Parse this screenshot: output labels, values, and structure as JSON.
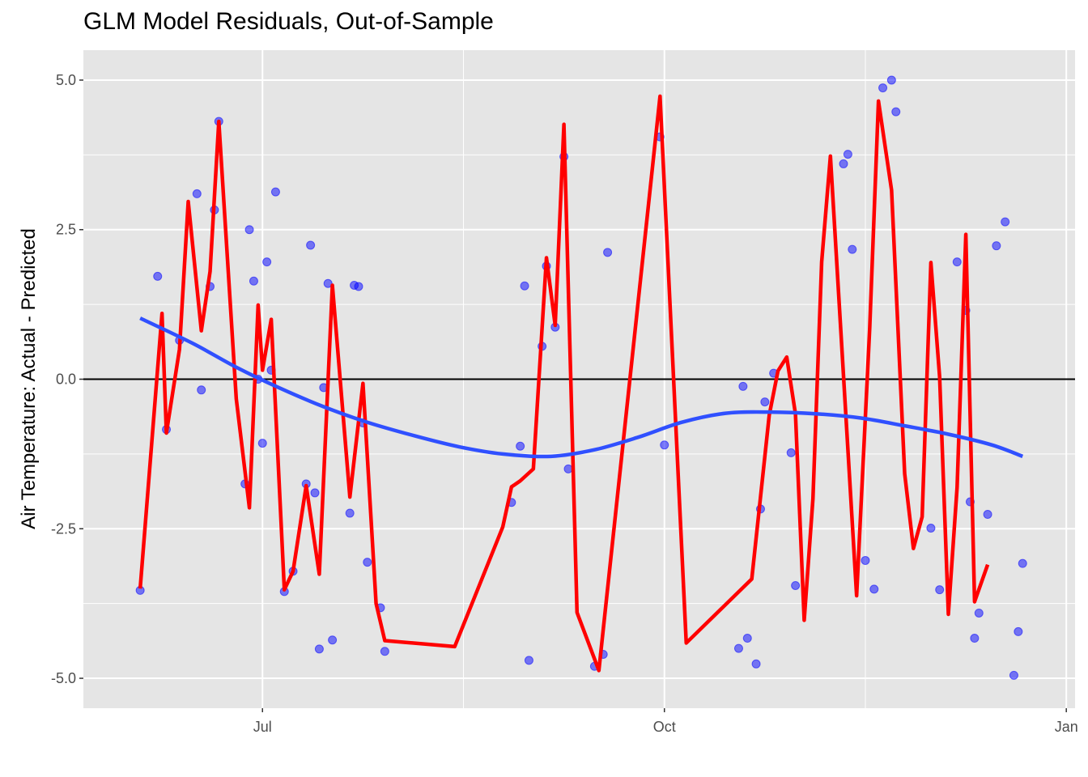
{
  "chart_data": {
    "type": "line",
    "title": "GLM Model Residuals, Out-of-Sample",
    "xlabel": "",
    "ylabel": "Air Temperature: Actual - Predicted",
    "x_ticks": [
      {
        "label": "Jul",
        "date": "2016-07-01"
      },
      {
        "label": "Oct",
        "date": "2016-10-01"
      },
      {
        "label": "Jan",
        "date": "2017-01-01"
      }
    ],
    "y_ticks": [
      5.0,
      2.5,
      0.0,
      -2.5,
      -5.0
    ],
    "y_tick_labels": [
      "5.0",
      "2.5",
      "0.0",
      "-2.5",
      "-5.0"
    ],
    "xlim": [
      "2016-05-21",
      "2017-01-03"
    ],
    "ylim": [
      -5.5,
      5.5
    ],
    "grid": true,
    "hline": 0,
    "colors": {
      "panel": "#e5e5e5",
      "grid": "#ffffff",
      "points": "#0000ff",
      "line": "#ff0000",
      "smooth": "#3050ff",
      "hline": "#000000"
    },
    "series": [
      {
        "type": "scatter",
        "points": [
          [
            "2016-06-03",
            -3.53
          ],
          [
            "2016-06-07",
            1.72
          ],
          [
            "2016-06-09",
            -0.84
          ],
          [
            "2016-06-12",
            0.65
          ],
          [
            "2016-06-16",
            3.1
          ],
          [
            "2016-06-17",
            -0.18
          ],
          [
            "2016-06-19",
            1.55
          ],
          [
            "2016-06-20",
            2.83
          ],
          [
            "2016-06-21",
            4.31
          ],
          [
            "2016-06-27",
            -1.75
          ],
          [
            "2016-06-28",
            2.5
          ],
          [
            "2016-06-29",
            1.64
          ],
          [
            "2016-06-30",
            0.0
          ],
          [
            "2016-07-01",
            -1.07
          ],
          [
            "2016-07-02",
            1.96
          ],
          [
            "2016-07-03",
            0.15
          ],
          [
            "2016-07-04",
            3.13
          ],
          [
            "2016-07-06",
            -3.55
          ],
          [
            "2016-07-08",
            -3.21
          ],
          [
            "2016-07-11",
            -1.75
          ],
          [
            "2016-07-12",
            2.24
          ],
          [
            "2016-07-13",
            -1.9
          ],
          [
            "2016-07-14",
            -4.51
          ],
          [
            "2016-07-15",
            -0.14
          ],
          [
            "2016-07-16",
            1.6
          ],
          [
            "2016-07-17",
            -4.36
          ],
          [
            "2016-07-21",
            -2.24
          ],
          [
            "2016-07-22",
            1.57
          ],
          [
            "2016-07-23",
            1.55
          ],
          [
            "2016-07-24",
            -0.73
          ],
          [
            "2016-07-25",
            -3.06
          ],
          [
            "2016-07-28",
            -3.82
          ],
          [
            "2016-07-29",
            -4.55
          ],
          [
            "2016-08-27",
            -2.06
          ],
          [
            "2016-08-29",
            -1.12
          ],
          [
            "2016-08-30",
            1.56
          ],
          [
            "2016-08-31",
            -4.7
          ],
          [
            "2016-09-03",
            0.55
          ],
          [
            "2016-09-04",
            1.89
          ],
          [
            "2016-09-06",
            0.87
          ],
          [
            "2016-09-08",
            3.72
          ],
          [
            "2016-09-09",
            -1.5
          ],
          [
            "2016-09-15",
            -4.8
          ],
          [
            "2016-09-17",
            -4.6
          ],
          [
            "2016-09-18",
            2.12
          ],
          [
            "2016-09-30",
            4.05
          ],
          [
            "2016-10-01",
            -1.1
          ],
          [
            "2016-10-18",
            -4.5
          ],
          [
            "2016-10-19",
            -0.12
          ],
          [
            "2016-10-20",
            -4.33
          ],
          [
            "2016-10-22",
            -4.76
          ],
          [
            "2016-10-23",
            -2.17
          ],
          [
            "2016-10-24",
            -0.38
          ],
          [
            "2016-10-26",
            0.1
          ],
          [
            "2016-10-30",
            -1.23
          ],
          [
            "2016-10-31",
            -3.45
          ],
          [
            "2016-11-11",
            3.6
          ],
          [
            "2016-11-12",
            3.76
          ],
          [
            "2016-11-13",
            2.17
          ],
          [
            "2016-11-16",
            -3.03
          ],
          [
            "2016-11-18",
            -3.51
          ],
          [
            "2016-11-20",
            4.87
          ],
          [
            "2016-11-22",
            5.0
          ],
          [
            "2016-11-23",
            4.47
          ],
          [
            "2016-12-01",
            -2.49
          ],
          [
            "2016-12-03",
            -3.52
          ],
          [
            "2016-12-07",
            1.96
          ],
          [
            "2016-12-09",
            1.15
          ],
          [
            "2016-12-10",
            -2.05
          ],
          [
            "2016-12-11",
            -4.33
          ],
          [
            "2016-12-12",
            -3.91
          ],
          [
            "2016-12-14",
            -2.26
          ],
          [
            "2016-12-16",
            2.23
          ],
          [
            "2016-12-18",
            2.63
          ],
          [
            "2016-12-20",
            -4.95
          ],
          [
            "2016-12-21",
            -4.22
          ],
          [
            "2016-12-22",
            -3.08
          ]
        ]
      },
      {
        "type": "line",
        "points": [
          [
            "2016-06-03",
            -3.5
          ],
          [
            "2016-06-08",
            1.1
          ],
          [
            "2016-06-09",
            -0.9
          ],
          [
            "2016-06-12",
            0.5
          ],
          [
            "2016-06-14",
            2.97
          ],
          [
            "2016-06-17",
            0.81
          ],
          [
            "2016-06-19",
            1.8
          ],
          [
            "2016-06-21",
            4.31
          ],
          [
            "2016-06-25",
            -0.33
          ],
          [
            "2016-06-28",
            -2.15
          ],
          [
            "2016-06-30",
            1.24
          ],
          [
            "2016-07-01",
            0.15
          ],
          [
            "2016-07-03",
            1.0
          ],
          [
            "2016-07-06",
            -3.52
          ],
          [
            "2016-07-08",
            -3.21
          ],
          [
            "2016-07-11",
            -1.78
          ],
          [
            "2016-07-14",
            -3.26
          ],
          [
            "2016-07-17",
            1.57
          ],
          [
            "2016-07-21",
            -1.97
          ],
          [
            "2016-07-24",
            -0.07
          ],
          [
            "2016-07-27",
            -3.75
          ],
          [
            "2016-07-29",
            -4.37
          ],
          [
            "2016-08-14",
            -4.47
          ],
          [
            "2016-08-25",
            -2.47
          ],
          [
            "2016-08-27",
            -1.8
          ],
          [
            "2016-08-29",
            -1.7
          ],
          [
            "2016-09-01",
            -1.5
          ],
          [
            "2016-09-04",
            2.03
          ],
          [
            "2016-09-06",
            0.9
          ],
          [
            "2016-09-08",
            4.26
          ],
          [
            "2016-09-11",
            -3.9
          ],
          [
            "2016-09-16",
            -4.87
          ],
          [
            "2016-09-30",
            4.73
          ],
          [
            "2016-10-06",
            -4.41
          ],
          [
            "2016-10-21",
            -3.34
          ],
          [
            "2016-10-25",
            -0.6
          ],
          [
            "2016-10-27",
            0.14
          ],
          [
            "2016-10-29",
            0.37
          ],
          [
            "2016-10-31",
            -0.58
          ],
          [
            "2016-11-02",
            -4.03
          ],
          [
            "2016-11-04",
            -2.0
          ],
          [
            "2016-11-06",
            1.96
          ],
          [
            "2016-11-08",
            3.73
          ],
          [
            "2016-11-14",
            -3.62
          ],
          [
            "2016-11-17",
            0.86
          ],
          [
            "2016-11-19",
            4.65
          ],
          [
            "2016-11-22",
            3.16
          ],
          [
            "2016-11-25",
            -1.58
          ],
          [
            "2016-11-27",
            -2.83
          ],
          [
            "2016-11-29",
            -2.3
          ],
          [
            "2016-12-01",
            1.95
          ],
          [
            "2016-12-03",
            0.04
          ],
          [
            "2016-12-05",
            -3.93
          ],
          [
            "2016-12-07",
            -1.81
          ],
          [
            "2016-12-09",
            2.42
          ],
          [
            "2016-12-11",
            -3.72
          ],
          [
            "2016-12-14",
            -3.1
          ]
        ]
      },
      {
        "type": "smooth",
        "points": [
          [
            "2016-06-03",
            1.02
          ],
          [
            "2016-06-15",
            0.6
          ],
          [
            "2016-06-25",
            0.2
          ],
          [
            "2016-07-05",
            -0.15
          ],
          [
            "2016-07-15",
            -0.46
          ],
          [
            "2016-07-25",
            -0.72
          ],
          [
            "2016-08-05",
            -0.95
          ],
          [
            "2016-08-15",
            -1.13
          ],
          [
            "2016-08-25",
            -1.25
          ],
          [
            "2016-09-05",
            -1.29
          ],
          [
            "2016-09-15",
            -1.18
          ],
          [
            "2016-09-25",
            -0.97
          ],
          [
            "2016-10-05",
            -0.72
          ],
          [
            "2016-10-15",
            -0.57
          ],
          [
            "2016-10-25",
            -0.55
          ],
          [
            "2016-11-05",
            -0.58
          ],
          [
            "2016-11-15",
            -0.65
          ],
          [
            "2016-11-25",
            -0.78
          ],
          [
            "2016-12-05",
            -0.92
          ],
          [
            "2016-12-15",
            -1.1
          ],
          [
            "2016-12-22",
            -1.29
          ]
        ]
      }
    ]
  }
}
